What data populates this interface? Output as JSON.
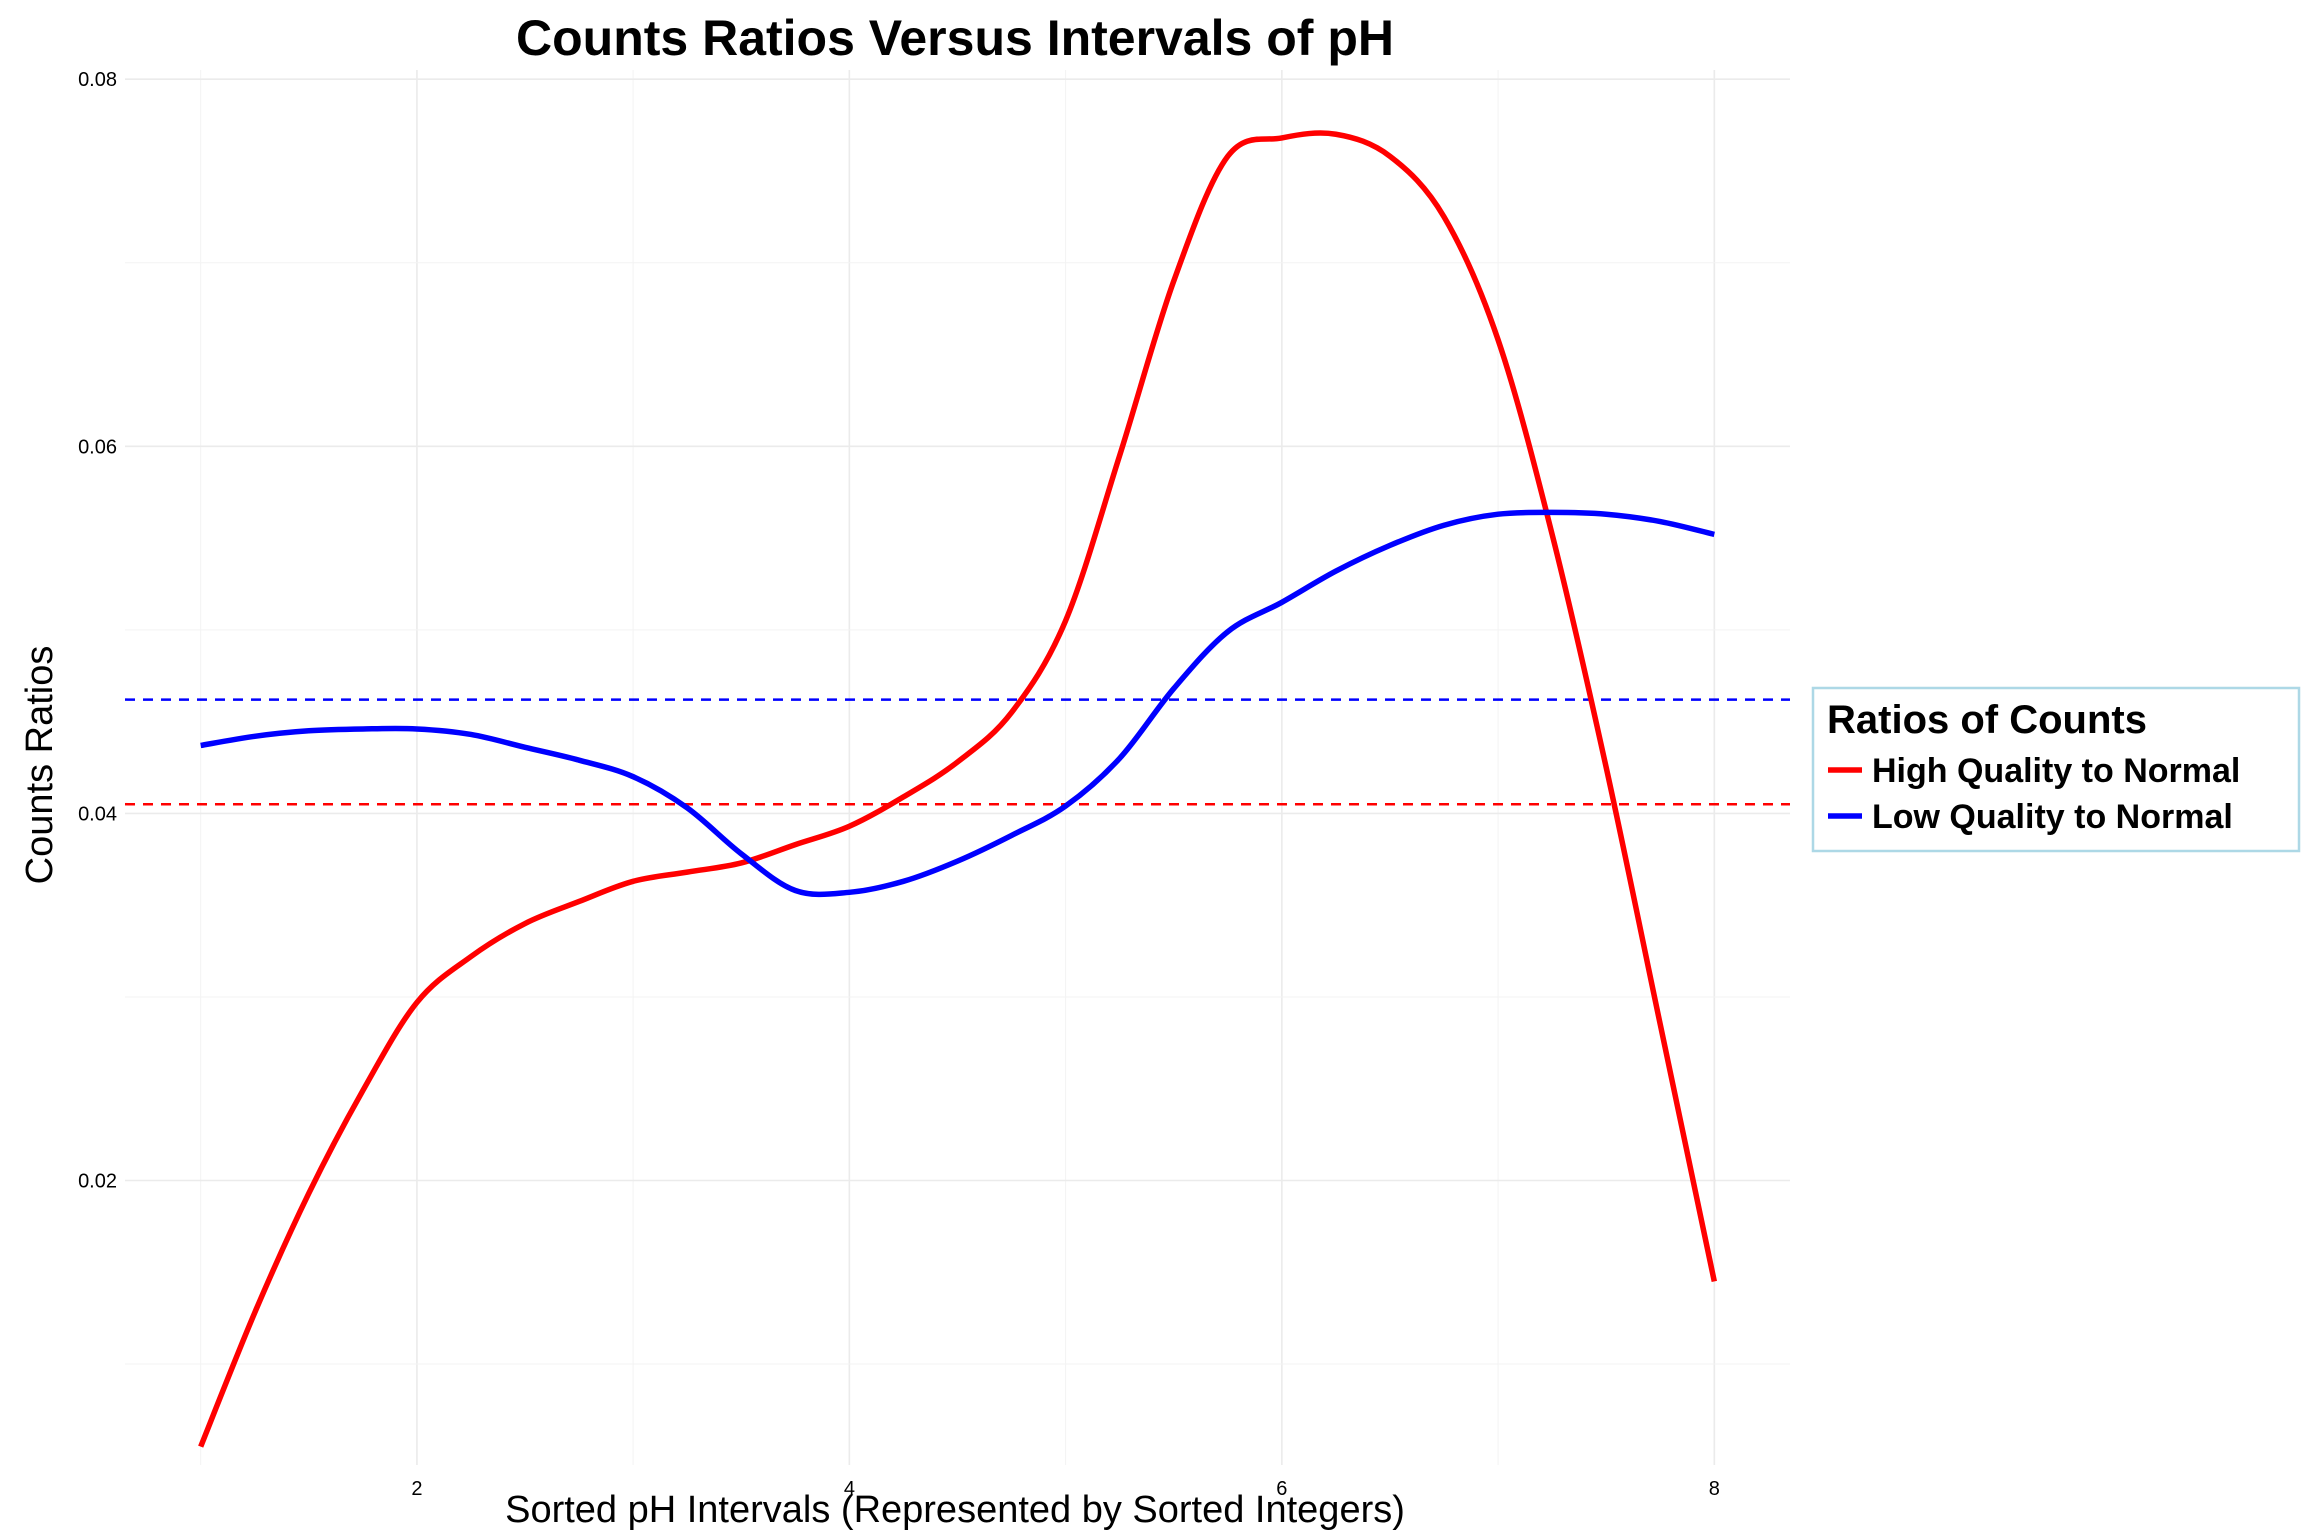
{
  "chart_data": {
    "type": "line",
    "title": "Counts Ratios Versus Intervals of pH",
    "xlabel": "Sorted pH Intervals (Represented by Sorted Integers)",
    "ylabel": "Counts Ratios",
    "xlim": [
      0.65,
      8.35
    ],
    "ylim": [
      0.0045,
      0.0805
    ],
    "x_ticks": [
      2,
      4,
      6,
      8
    ],
    "x_tick_labels": [
      "2",
      "4",
      "6",
      "8"
    ],
    "y_ticks": [
      0.02,
      0.04,
      0.06,
      0.08
    ],
    "y_tick_labels": [
      "0.02",
      "0.04",
      "0.06",
      "0.08"
    ],
    "grid": true,
    "legend_position": "right",
    "legend_title": "Ratios of Counts",
    "series": [
      {
        "name": "High Quality to Normal",
        "color": "#ff0000",
        "x": [
          1,
          1.25,
          1.5,
          1.75,
          2,
          2.25,
          2.5,
          2.75,
          3,
          3.25,
          3.5,
          3.75,
          4,
          4.25,
          4.5,
          4.75,
          5,
          5.25,
          5.5,
          5.75,
          6,
          6.25,
          6.5,
          6.75,
          7,
          7.25,
          7.5,
          7.75,
          8
        ],
        "values": [
          0.0055,
          0.0128,
          0.0193,
          0.0249,
          0.0297,
          0.0322,
          0.034,
          0.0352,
          0.0363,
          0.0368,
          0.0373,
          0.0383,
          0.0393,
          0.0409,
          0.0428,
          0.0455,
          0.0505,
          0.0595,
          0.069,
          0.0758,
          0.0768,
          0.077,
          0.0758,
          0.0725,
          0.0658,
          0.0552,
          0.0425,
          0.0285,
          0.0145
        ]
      },
      {
        "name": "Low Quality to Normal",
        "color": "#0000ff",
        "x": [
          1,
          1.25,
          1.5,
          1.75,
          2,
          2.25,
          2.5,
          2.75,
          3,
          3.25,
          3.5,
          3.75,
          4,
          4.25,
          4.5,
          4.75,
          5,
          5.25,
          5.5,
          5.75,
          6,
          6.25,
          6.5,
          6.75,
          7,
          7.25,
          7.5,
          7.75,
          8
        ],
        "values": [
          0.0437,
          0.0442,
          0.0445,
          0.0446,
          0.0446,
          0.0443,
          0.0436,
          0.0429,
          0.042,
          0.0403,
          0.0378,
          0.0358,
          0.0357,
          0.0363,
          0.0374,
          0.0388,
          0.0404,
          0.043,
          0.0468,
          0.0499,
          0.0515,
          0.0532,
          0.0546,
          0.0557,
          0.0563,
          0.0564,
          0.0563,
          0.0559,
          0.0552
        ]
      }
    ],
    "reference_lines": [
      {
        "series": "High Quality to Normal",
        "color": "#ff0000",
        "y": 0.0405,
        "style": "dashed"
      },
      {
        "series": "Low Quality to Normal",
        "color": "#0000ff",
        "y": 0.0462,
        "style": "dashed"
      }
    ]
  }
}
